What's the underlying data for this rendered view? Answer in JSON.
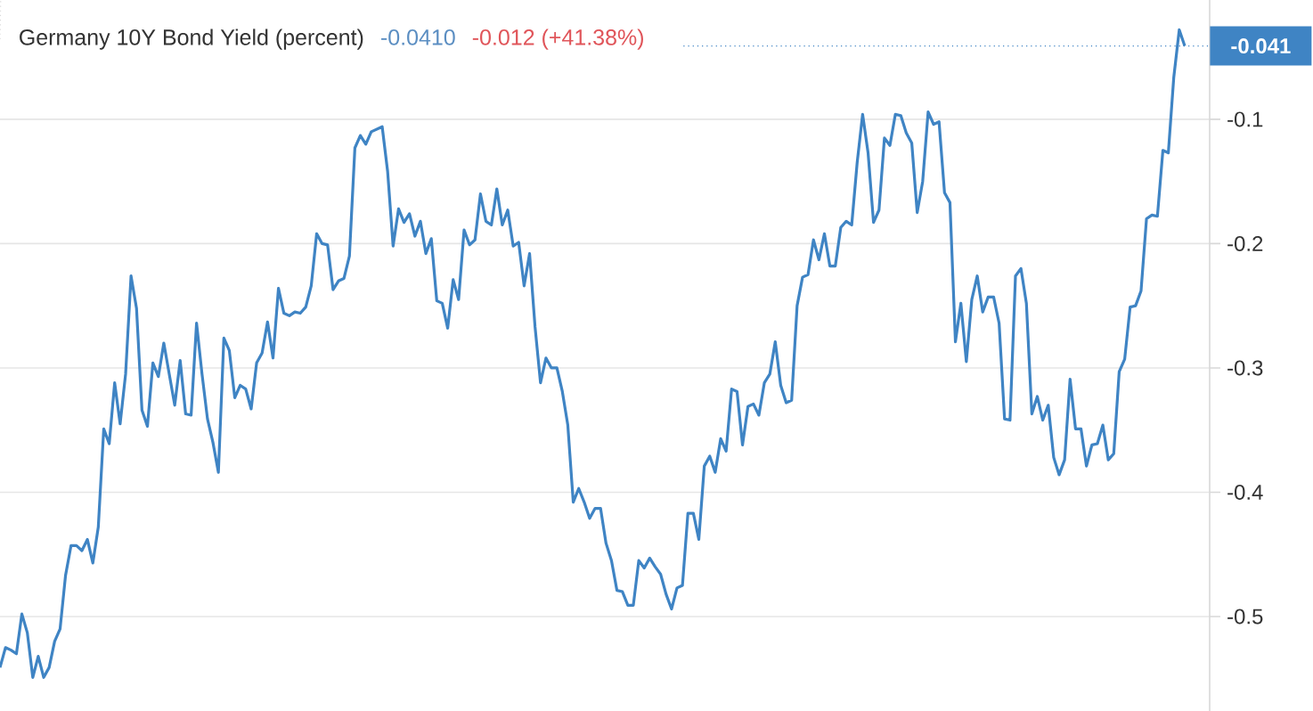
{
  "chart_data": {
    "type": "line",
    "title": "Germany 10Y Bond Yield (percent)",
    "annotations": [
      "-0.0410",
      "-0.012 (+41.38%)"
    ],
    "categories": [
      null,
      null,
      null,
      null,
      null,
      null,
      null,
      null,
      null,
      null,
      null,
      null,
      null,
      null,
      null,
      null,
      null,
      null,
      null,
      null,
      null,
      null,
      null,
      null,
      null,
      null,
      null,
      null,
      null,
      null,
      null,
      null,
      null,
      null,
      null,
      null,
      null,
      null,
      null,
      null,
      null,
      null,
      null,
      null,
      null,
      null,
      null,
      null,
      null,
      null,
      null,
      null,
      null,
      null,
      null,
      null,
      null,
      null,
      null,
      null,
      null,
      null,
      null,
      null,
      null,
      null,
      null,
      null,
      null,
      null,
      null,
      null,
      null,
      null,
      null,
      null,
      null,
      null,
      null,
      null,
      null,
      null,
      null,
      null,
      null,
      null,
      null,
      null,
      null,
      null,
      null,
      null,
      null,
      null,
      null,
      null,
      null,
      null,
      null,
      null,
      null,
      null,
      null,
      null,
      null,
      null,
      null,
      null,
      null,
      null,
      null,
      null,
      null,
      null,
      null,
      null,
      null,
      null,
      null,
      null,
      null,
      null,
      null,
      null,
      null,
      null,
      null,
      null,
      null,
      null,
      null,
      null,
      null,
      null,
      null,
      null,
      null,
      null,
      null,
      null,
      null,
      null,
      null,
      null,
      null,
      null,
      null,
      null,
      null,
      null,
      null,
      null,
      null,
      null,
      null,
      null,
      null,
      null,
      null,
      null,
      null,
      null,
      null,
      null,
      null,
      null,
      null,
      null,
      null,
      null,
      null,
      null,
      null,
      null,
      null,
      null,
      null,
      null,
      null,
      null,
      null,
      null,
      null,
      null,
      null,
      null,
      null,
      null,
      null,
      null,
      null,
      null,
      null,
      null,
      null,
      null,
      null,
      null,
      null,
      null,
      null,
      null,
      null,
      null,
      null,
      null,
      null,
      null,
      null,
      null,
      null,
      null,
      null,
      null,
      null,
      null,
      null,
      null
    ],
    "values": [
      -0.541,
      -0.525,
      -0.527,
      -0.53,
      -0.498,
      -0.513,
      -0.549,
      -0.532,
      -0.549,
      -0.541,
      -0.52,
      -0.51,
      -0.467,
      -0.443,
      -0.443,
      -0.447,
      -0.438,
      -0.457,
      -0.428,
      -0.349,
      -0.361,
      -0.312,
      -0.345,
      -0.305,
      -0.226,
      -0.252,
      -0.334,
      -0.347,
      -0.296,
      -0.307,
      -0.28,
      -0.305,
      -0.33,
      -0.294,
      -0.337,
      -0.338,
      -0.264,
      -0.305,
      -0.341,
      -0.36,
      -0.384,
      -0.276,
      -0.286,
      -0.324,
      -0.314,
      -0.317,
      -0.333,
      -0.296,
      -0.288,
      -0.263,
      -0.292,
      -0.236,
      -0.256,
      -0.258,
      -0.255,
      -0.256,
      -0.251,
      -0.234,
      -0.192,
      -0.2,
      -0.201,
      -0.237,
      -0.23,
      -0.228,
      -0.21,
      -0.123,
      -0.113,
      -0.12,
      -0.11,
      -0.108,
      -0.106,
      -0.142,
      -0.202,
      -0.172,
      -0.183,
      -0.176,
      -0.194,
      -0.182,
      -0.208,
      -0.196,
      -0.246,
      -0.248,
      -0.268,
      -0.229,
      -0.245,
      -0.189,
      -0.201,
      -0.197,
      -0.16,
      -0.182,
      -0.185,
      -0.156,
      -0.185,
      -0.173,
      -0.202,
      -0.199,
      -0.234,
      -0.208,
      -0.267,
      -0.312,
      -0.292,
      -0.3,
      -0.3,
      -0.319,
      -0.346,
      -0.408,
      -0.397,
      -0.408,
      -0.421,
      -0.413,
      -0.413,
      -0.441,
      -0.455,
      -0.479,
      -0.48,
      -0.491,
      -0.491,
      -0.455,
      -0.461,
      -0.453,
      -0.46,
      -0.466,
      -0.482,
      -0.494,
      -0.477,
      -0.475,
      -0.417,
      -0.417,
      -0.438,
      -0.379,
      -0.371,
      -0.384,
      -0.357,
      -0.367,
      -0.317,
      -0.319,
      -0.362,
      -0.331,
      -0.329,
      -0.338,
      -0.312,
      -0.305,
      -0.279,
      -0.314,
      -0.328,
      -0.326,
      -0.25,
      -0.227,
      -0.225,
      -0.197,
      -0.213,
      -0.192,
      -0.218,
      -0.218,
      -0.187,
      -0.182,
      -0.185,
      -0.135,
      -0.096,
      -0.127,
      -0.183,
      -0.173,
      -0.115,
      -0.121,
      -0.096,
      -0.097,
      -0.111,
      -0.119,
      -0.175,
      -0.15,
      -0.094,
      -0.104,
      -0.102,
      -0.159,
      -0.167,
      -0.279,
      -0.248,
      -0.295,
      -0.245,
      -0.226,
      -0.255,
      -0.243,
      -0.243,
      -0.264,
      -0.341,
      -0.342,
      -0.226,
      -0.22,
      -0.248,
      -0.337,
      -0.323,
      -0.342,
      -0.33,
      -0.372,
      -0.386,
      -0.374,
      -0.309,
      -0.349,
      -0.349,
      -0.379,
      -0.362,
      -0.361,
      -0.346,
      -0.374,
      -0.369,
      -0.303,
      -0.293,
      -0.251,
      -0.25,
      -0.238,
      -0.18,
      -0.177,
      -0.178,
      -0.125,
      -0.127,
      -0.066,
      -0.028,
      -0.041
    ],
    "color": "#3f84c4",
    "line_style": "solid",
    "ylim": [
      -0.576,
      -0.004
    ],
    "yticks": [
      -0.5,
      -0.4,
      -0.3,
      -0.2,
      -0.1
    ],
    "grid": "y",
    "ref_lines": [
      {
        "axis": "y",
        "value": -0.041,
        "label": "-0.041",
        "color": "#3f84c4",
        "line_style": "dotted"
      }
    ]
  }
}
